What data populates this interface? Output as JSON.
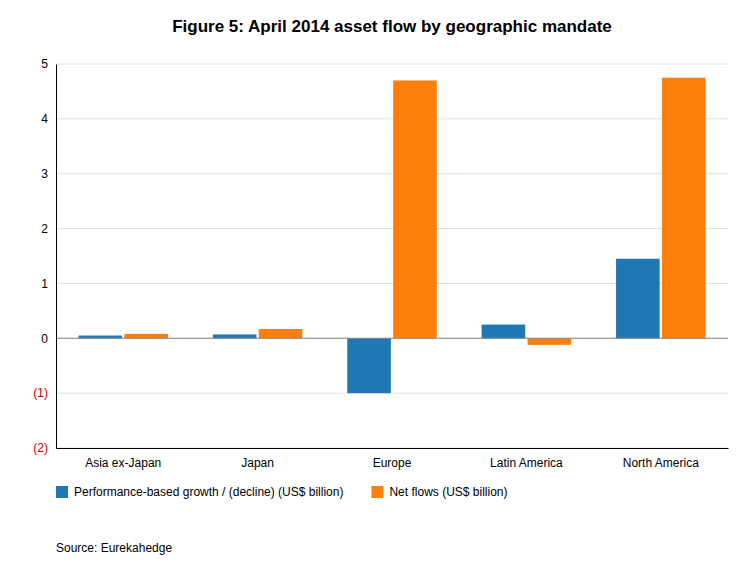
{
  "chart_data": {
    "type": "bar",
    "title": "Figure 5: April 2014 asset flow by geographic mandate",
    "categories": [
      "Asia ex-Japan",
      "Japan",
      "Europe",
      "Latin America",
      "North America"
    ],
    "series": [
      {
        "name": "Performance-based growth / (decline) (US$ billion)",
        "values": [
          0.05,
          0.07,
          -1.0,
          0.25,
          1.45
        ]
      },
      {
        "name": "Net flows (US$ billion)",
        "values": [
          0.08,
          0.17,
          4.7,
          -0.12,
          4.75
        ]
      }
    ],
    "ylim": [
      -2,
      5
    ],
    "yticks": [
      {
        "value": -2,
        "label": "(2)"
      },
      {
        "value": -1,
        "label": "(1)"
      },
      0,
      1,
      2,
      3,
      4,
      5
    ],
    "grid": true,
    "legend": "bottom",
    "annotations": [
      "Source: Eurekahedge"
    ]
  }
}
